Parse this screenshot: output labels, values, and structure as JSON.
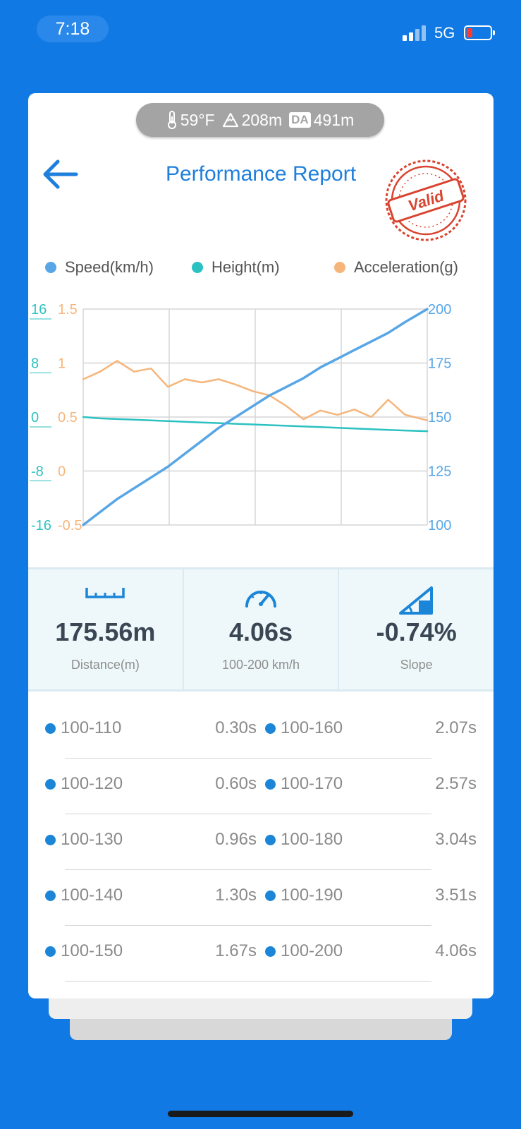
{
  "status_bar": {
    "time": "7:18",
    "network": "5G"
  },
  "environment": {
    "temperature": "59°F",
    "altitude": "208m",
    "da_label": "DA",
    "density_altitude": "491m"
  },
  "header": {
    "title": "Performance Report",
    "stamp_text": "Valid"
  },
  "legend": [
    {
      "label": "Speed(km/h)",
      "color": "#58a6e6"
    },
    {
      "label": "Height(m)",
      "color": "#2cc1c1"
    },
    {
      "label": "Acceleration(g)",
      "color": "#f6b57a"
    }
  ],
  "chart_data": {
    "type": "line",
    "grid": true,
    "x": [
      0,
      0.2,
      0.4,
      0.6,
      0.8,
      1.0,
      1.2,
      1.4,
      1.6,
      1.8,
      2.0,
      2.2,
      2.4,
      2.6,
      2.8,
      3.0,
      3.2,
      3.4,
      3.6,
      3.8,
      4.06
    ],
    "axes": {
      "height": {
        "ticks": [
          "16",
          "8",
          "0",
          "-8",
          "-16"
        ],
        "ylim": [
          -16,
          16
        ],
        "color": "#2cc1c1"
      },
      "acceleration": {
        "ticks": [
          "1.5",
          "1",
          "0.5",
          "0",
          "-0.5"
        ],
        "ylim": [
          -0.5,
          1.5
        ],
        "color": "#f6b57a"
      },
      "speed": {
        "ticks": [
          "200",
          "175",
          "150",
          "125",
          "100"
        ],
        "ylim": [
          100,
          200
        ],
        "color": "#58a6e6"
      }
    },
    "series": [
      {
        "name": "Speed(km/h)",
        "axis": "speed",
        "color": "#58a6e6",
        "values": [
          100,
          106,
          112,
          117,
          122,
          127,
          133,
          139,
          145,
          150,
          155,
          160,
          164,
          168,
          173,
          177,
          181,
          185,
          189,
          194,
          200
        ]
      },
      {
        "name": "Height(m)",
        "axis": "height",
        "color": "#2cc1c1",
        "values": [
          0,
          -0.2,
          -0.3,
          -0.4,
          -0.5,
          -0.6,
          -0.7,
          -0.8,
          -0.9,
          -1.0,
          -1.1,
          -1.2,
          -1.3,
          -1.4,
          -1.5,
          -1.6,
          -1.7,
          -1.8,
          -1.9,
          -2.0,
          -2.1
        ]
      },
      {
        "name": "Acceleration(g)",
        "axis": "acceleration",
        "color": "#f6b57a",
        "values": [
          0.85,
          0.92,
          1.02,
          0.92,
          0.95,
          0.78,
          0.85,
          0.82,
          0.85,
          0.8,
          0.74,
          0.7,
          0.6,
          0.48,
          0.56,
          0.52,
          0.57,
          0.5,
          0.66,
          0.52,
          0.47
        ]
      }
    ]
  },
  "stats": [
    {
      "icon": "ruler-icon",
      "value": "175.56m",
      "label": "Distance(m)"
    },
    {
      "icon": "speedometer-icon",
      "value": "4.06s",
      "label": "100-200 km/h"
    },
    {
      "icon": "slope-icon",
      "value": "-0.74%",
      "label": "Slope"
    }
  ],
  "splits": [
    {
      "left": {
        "range": "100-110",
        "time": "0.30s"
      },
      "right": {
        "range": "100-160",
        "time": "2.07s"
      }
    },
    {
      "left": {
        "range": "100-120",
        "time": "0.60s"
      },
      "right": {
        "range": "100-170",
        "time": "2.57s"
      }
    },
    {
      "left": {
        "range": "100-130",
        "time": "0.96s"
      },
      "right": {
        "range": "100-180",
        "time": "3.04s"
      }
    },
    {
      "left": {
        "range": "100-140",
        "time": "1.30s"
      },
      "right": {
        "range": "100-190",
        "time": "3.51s"
      }
    },
    {
      "left": {
        "range": "100-150",
        "time": "1.67s"
      },
      "right": {
        "range": "100-200",
        "time": "4.06s"
      }
    }
  ],
  "colors": {
    "background": "#1079e3",
    "accent": "#1e7fdc",
    "stamp": "#d8442f"
  }
}
